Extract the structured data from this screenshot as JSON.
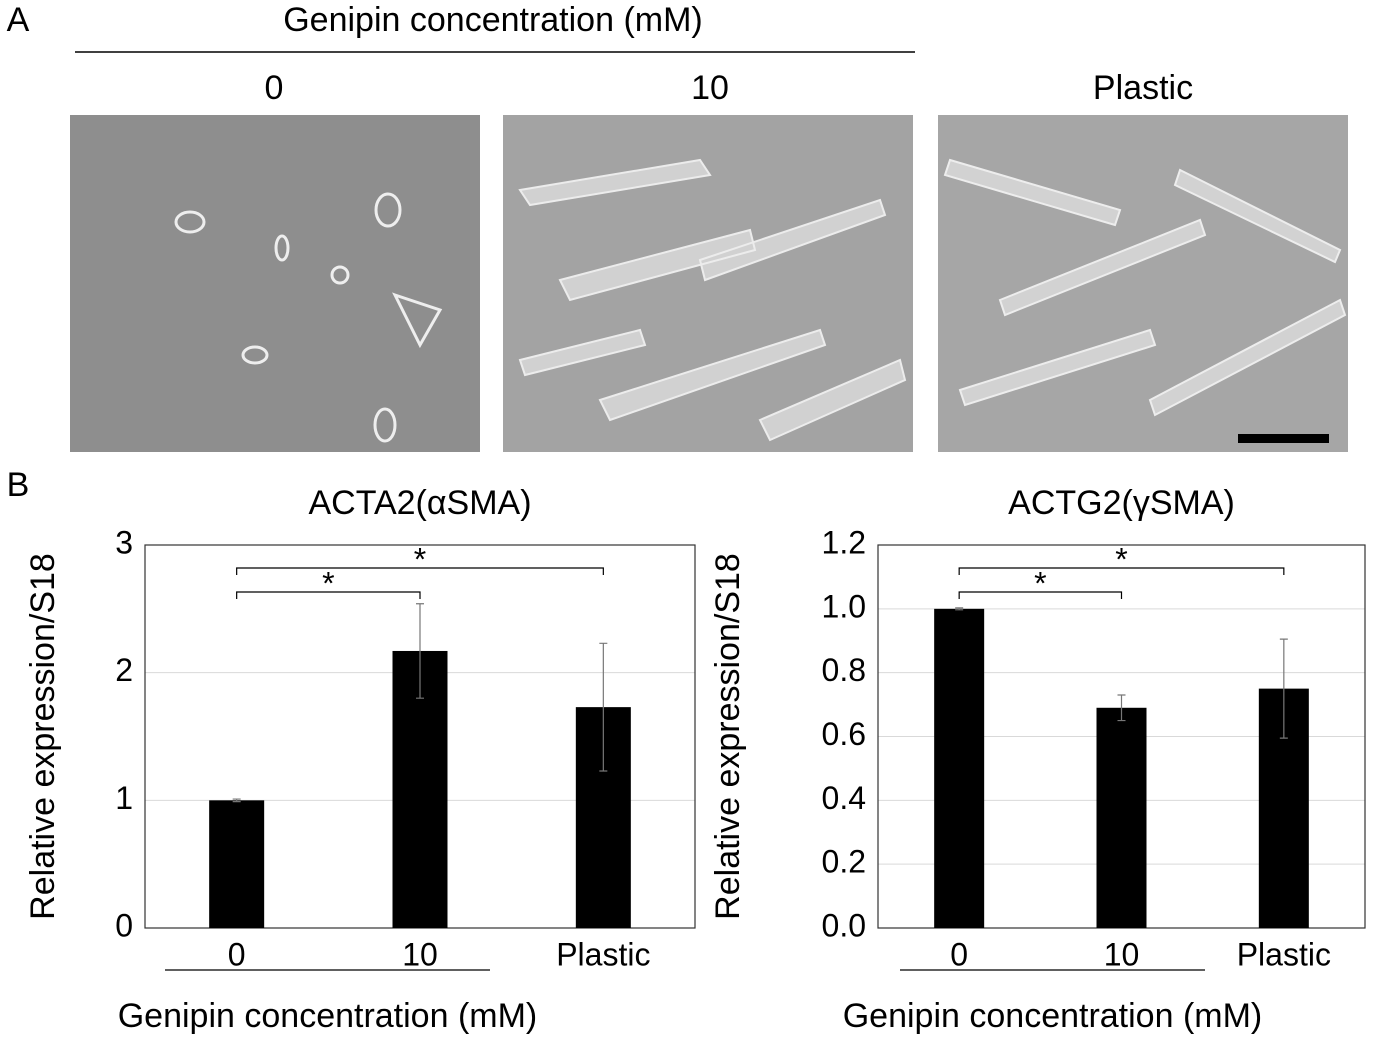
{
  "figure": {
    "panel_a": "A",
    "panel_b": "B",
    "header": "Genipin concentration (mM)",
    "conditions": [
      "0",
      "10",
      "Plastic"
    ]
  },
  "chart_data": [
    {
      "type": "bar",
      "title": "ACTA2(αSMA)",
      "y_label": "Relative expression/S18",
      "x_label": "Genipin concentration (mM)",
      "categories": [
        "0",
        "10",
        "Plastic"
      ],
      "values": [
        1.0,
        2.17,
        1.73
      ],
      "errors": [
        0.01,
        0.37,
        0.5
      ],
      "color": "#000000",
      "ylim": [
        0,
        3
      ],
      "yticks": [
        0,
        1,
        2,
        3
      ],
      "grid": true,
      "annotations": [
        {
          "text": "*",
          "between": [
            "0",
            "10"
          ]
        },
        {
          "text": "*",
          "between": [
            "0",
            "Plastic"
          ]
        }
      ]
    },
    {
      "type": "bar",
      "title": "ACTG2(γSMA)",
      "y_label": "Relative expression/S18",
      "x_label": "Genipin concentration (mM)",
      "categories": [
        "0",
        "10",
        "Plastic"
      ],
      "values": [
        1.0,
        0.69,
        0.75
      ],
      "errors": [
        0.003,
        0.04,
        0.155
      ],
      "color": "#000000",
      "ylim": [
        0,
        1.2
      ],
      "yticks": [
        {
          "value": 0,
          "label": "0.0"
        },
        0.2,
        0.4,
        0.6,
        0.8,
        {
          "value": 1,
          "label": "1.0"
        },
        1.2
      ],
      "grid": true,
      "annotations": [
        {
          "text": "*",
          "between": [
            "0",
            "10"
          ]
        },
        {
          "text": "*",
          "between": [
            "0",
            "Plastic"
          ]
        }
      ]
    }
  ]
}
